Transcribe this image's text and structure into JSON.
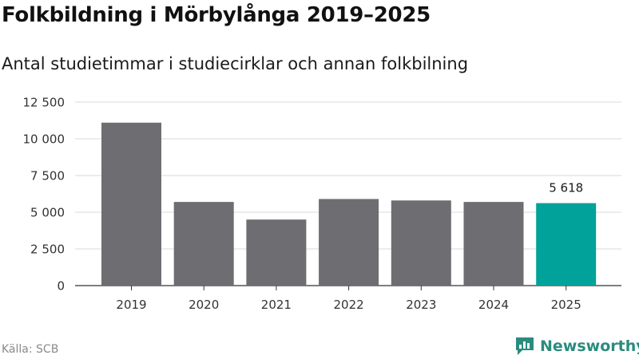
{
  "header": {
    "title": "Folkbildning i Mörbylånga 2019–2025",
    "subtitle": "Antal studietimmar i studiecirklar och annan folkbilning"
  },
  "footer": {
    "source": "Källa: SCB",
    "brand": "Newsworthy"
  },
  "colors": {
    "bar": "#6e6d72",
    "highlight": "#00a29a",
    "grid": "#d9d9d9",
    "brand": "#2b8b7e"
  },
  "chart_data": {
    "type": "bar",
    "title": "Folkbildning i Mörbylånga 2019–2025",
    "subtitle": "Antal studietimmar i studiecirklar och annan folkbilning",
    "categories": [
      "2019",
      "2020",
      "2021",
      "2022",
      "2023",
      "2024",
      "2025"
    ],
    "values": [
      11100,
      5700,
      4500,
      5900,
      5800,
      5700,
      5618
    ],
    "highlight_index": 6,
    "data_labels": [
      {
        "index": 6,
        "text": "5 618"
      }
    ],
    "ylim": [
      0,
      12500
    ],
    "yticks": [
      0,
      2500,
      5000,
      7500,
      10000,
      12500
    ],
    "ytick_labels": [
      "0",
      "2 500",
      "5 000",
      "7 500",
      "10 000",
      "12 500"
    ],
    "xlabel": "",
    "ylabel": "",
    "grid": true,
    "legend": "none"
  }
}
